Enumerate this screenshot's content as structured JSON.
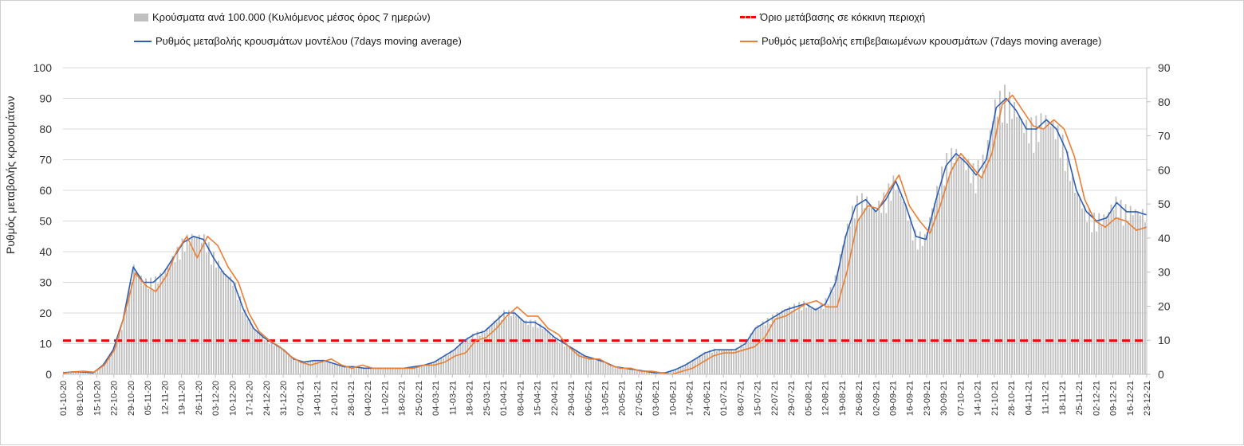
{
  "legend": {
    "bars": "Κρούσματα ανά 100.000 (Κυλιόμενος μέσος όρος 7 ημερών)",
    "threshold": "Όριο μετάβασης σε κόκκινη περιοχή",
    "model": "Ρυθμός μεταβολής κρουσμάτων μοντέλου (7days moving average)",
    "confirmed": "Ρυθμός μεταβολής επιβεβαιωμένων κρουσμάτων (7days moving average)"
  },
  "chart_data": {
    "type": "bar+line",
    "ylabel": "Ρυθμός μεταβολής κρουσμάτων",
    "ylim_left": [
      0,
      100
    ],
    "ylim_right": [
      0,
      90
    ],
    "yticks_left": [
      "0",
      "10",
      "20",
      "30",
      "40",
      "50",
      "60",
      "70",
      "80",
      "90",
      "100"
    ],
    "yticks_right": [
      "0",
      "10",
      "20",
      "30",
      "40",
      "50",
      "60",
      "70",
      "80",
      "90"
    ],
    "threshold_left": 11,
    "colors": {
      "bars": "#bfbfbf",
      "threshold": "#ff0000",
      "model": "#2e5fb5",
      "confirmed": "#ed7d31"
    },
    "x_labels": [
      "01-10-20",
      "08-10-20",
      "15-10-20",
      "22-10-20",
      "29-10-20",
      "05-11-20",
      "12-11-20",
      "19-11-20",
      "26-11-20",
      "03-12-20",
      "10-12-20",
      "17-12-20",
      "24-12-20",
      "31-12-20",
      "07-01-21",
      "14-01-21",
      "21-01-21",
      "28-01-21",
      "04-02-21",
      "11-02-21",
      "18-02-21",
      "25-02-21",
      "04-03-21",
      "11-03-21",
      "18-03-21",
      "25-03-21",
      "01-04-21",
      "08-04-21",
      "15-04-21",
      "22-04-21",
      "29-04-21",
      "06-05-21",
      "13-05-21",
      "20-05-21",
      "27-05-21",
      "03-06-21",
      "10-06-21",
      "17-06-21",
      "24-06-21",
      "01-07-21",
      "08-07-21",
      "15-07-21",
      "22-07-21",
      "29-07-21",
      "05-08-21",
      "12-08-21",
      "19-08-21",
      "26-08-21",
      "02-09-21",
      "09-09-21",
      "16-09-21",
      "23-09-21",
      "30-09-21",
      "07-10-21",
      "14-10-21",
      "21-10-21",
      "28-10-21",
      "04-11-21",
      "11-11-21",
      "18-11-21",
      "25-11-21",
      "02-12-21",
      "09-12-21",
      "16-12-21",
      "23-12-21"
    ],
    "model_series": [
      0.5,
      0.8,
      0.8,
      0.5,
      3,
      8,
      18,
      35,
      30,
      30,
      33,
      38,
      43,
      45,
      44,
      38,
      33,
      30,
      21,
      15,
      12,
      10,
      8,
      5,
      4,
      4.5,
      4.5,
      3.5,
      2.5,
      2.5,
      2,
      2,
      2,
      2,
      2,
      2.5,
      3,
      4,
      6,
      8,
      11,
      13,
      14,
      17,
      20,
      20,
      17,
      17,
      15,
      12,
      10,
      8,
      6,
      5,
      4,
      2.5,
      2,
      1.5,
      1,
      0.5,
      0.5,
      1.5,
      3,
      5,
      7,
      8,
      8,
      8,
      10,
      15,
      17,
      19,
      21,
      22,
      23,
      21,
      23,
      30,
      45,
      55,
      57,
      53,
      57,
      63,
      55,
      45,
      44,
      57,
      68,
      72,
      69,
      65,
      70,
      87,
      90,
      86,
      80,
      80,
      83,
      80,
      73,
      60,
      53,
      50,
      51,
      56,
      53,
      53,
      52
    ],
    "confirmed_series": [
      0.3,
      0.8,
      1,
      0.7,
      3,
      8,
      20,
      33,
      29,
      27,
      32,
      40,
      45,
      38,
      45,
      42,
      35,
      30,
      20,
      14,
      11,
      9,
      6,
      4,
      3,
      4,
      5,
      3,
      2,
      3,
      2,
      2,
      2,
      2,
      2,
      3,
      3,
      4,
      6,
      7,
      11,
      12,
      15,
      19,
      22,
      19,
      19,
      15,
      13,
      9,
      6,
      5,
      5,
      3,
      2,
      2,
      1,
      1,
      0.5,
      0,
      1,
      2,
      4,
      6,
      7,
      7,
      8,
      9,
      12,
      18,
      19,
      21,
      23,
      24,
      22,
      22,
      34,
      50,
      55,
      54,
      60,
      65,
      55,
      50,
      46,
      55,
      66,
      72,
      68,
      64,
      72,
      88,
      91,
      86,
      81,
      80,
      83,
      80,
      71,
      57,
      50,
      48,
      51,
      50,
      47,
      48
    ]
  }
}
